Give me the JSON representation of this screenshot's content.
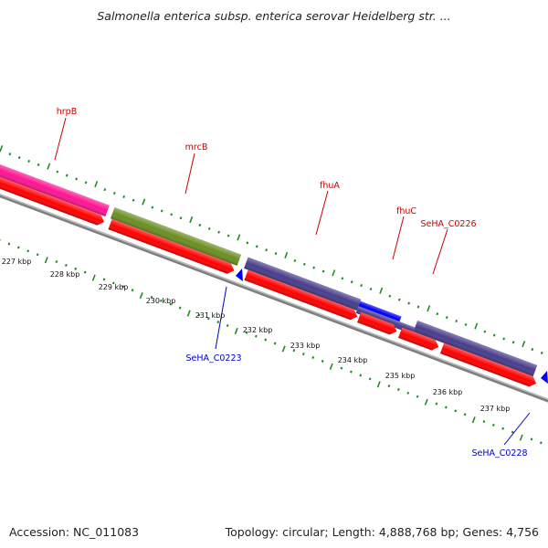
{
  "title": "Salmonella enterica subsp. enterica serovar Heidelberg str. ...",
  "footer": {
    "accession": "Accession: NC_011083",
    "summary": "Topology: circular; Length: 4,888,768 bp; Genes: 4,756"
  },
  "colors": {
    "gene_label_plus": "#cc0000",
    "gene_label_minus": "#0000cc",
    "cds_arrow": "#ff0000",
    "hrpB_feature": "#ff1493",
    "mrcB_feature": "#6b8e23",
    "fhuA_feature": "#483d8b",
    "fhuC_feature": "#0000ff",
    "SeHA_C0226_feature": "#483d8b",
    "tick_mark": "#228b22",
    "backbone": "#7f7f7f"
  },
  "scale_labels": [
    "227 kbp",
    "228 kbp",
    "229 kbp",
    "230 kbp",
    "231 kbp",
    "232 kbp",
    "233 kbp",
    "234 kbp",
    "235 kbp",
    "236 kbp",
    "237 kbp"
  ],
  "top_gene_labels": [
    {
      "name": "hrpB",
      "strand": "plus"
    },
    {
      "name": "mrcB",
      "strand": "plus"
    },
    {
      "name": "fhuA",
      "strand": "plus"
    },
    {
      "name": "fhuC",
      "strand": "plus"
    },
    {
      "name": "SeHA_C0226",
      "strand": "plus"
    }
  ],
  "bottom_gene_labels": [
    {
      "name": "SeHA_C0223",
      "strand": "minus"
    },
    {
      "name": "SeHA_C0228",
      "strand": "minus"
    }
  ]
}
